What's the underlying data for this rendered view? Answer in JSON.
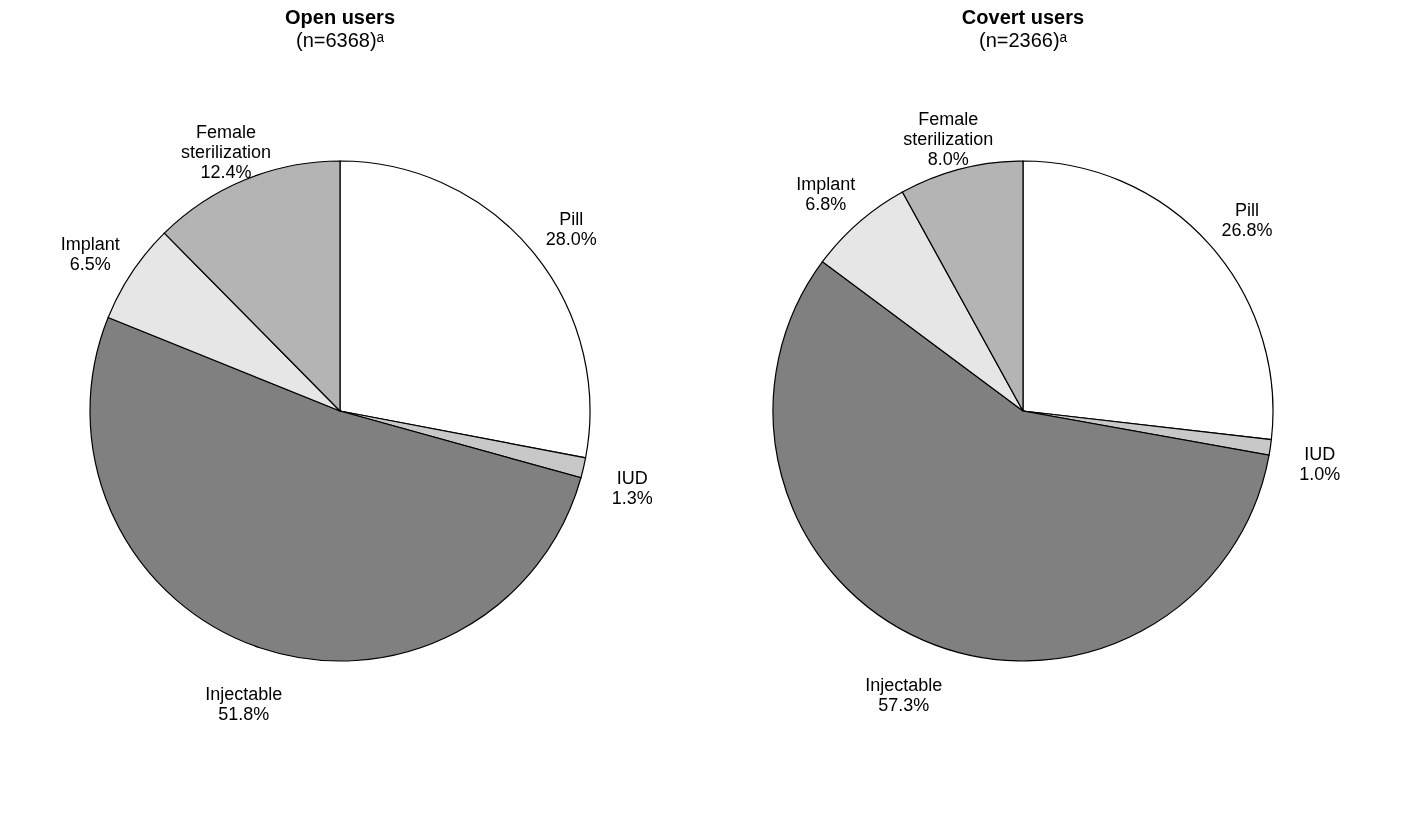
{
  "chart_data": [
    {
      "type": "pie",
      "title": "Open users",
      "subtitle": "(n=6368)ᵃ",
      "categories": [
        "Pill",
        "IUD",
        "Injectable",
        "Implant",
        "Female sterilization"
      ],
      "values": [
        28.0,
        1.3,
        51.8,
        6.5,
        12.4
      ],
      "value_labels": [
        "28.0%",
        "1.3%",
        "51.8%",
        "6.5%",
        "12.4%"
      ],
      "colors": [
        "#ffffff",
        "#c8c8c8",
        "#808080",
        "#e6e6e6",
        "#b4b4b4"
      ],
      "legend": false
    },
    {
      "type": "pie",
      "title": "Covert users",
      "subtitle": "(n=2366)ᵃ",
      "categories": [
        "Pill",
        "IUD",
        "Injectable",
        "Implant",
        "Female sterilization"
      ],
      "values": [
        26.8,
        1.0,
        57.3,
        6.8,
        8.0
      ],
      "value_labels": [
        "26.8%",
        "1.0%",
        "57.3%",
        "6.8%",
        "8.0%"
      ],
      "colors": [
        "#ffffff",
        "#c8c8c8",
        "#808080",
        "#e6e6e6",
        "#b4b4b4"
      ],
      "legend": false
    }
  ]
}
